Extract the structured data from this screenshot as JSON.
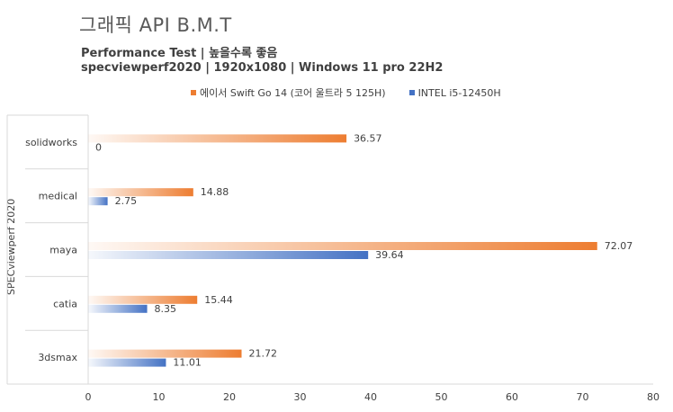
{
  "chart_data": {
    "type": "bar",
    "orientation": "horizontal",
    "title": "그래픽 API B.M.T",
    "subtitle_lines": [
      "Performance Test | 높을수록 좋음",
      "specviewperf2020 | 1920x1080 | Windows 11 pro 22H2"
    ],
    "ylabel": "SPECviewperf 2020",
    "xlabel": "",
    "categories": [
      "solidworks",
      "medical",
      "maya",
      "catia",
      "3dsmax"
    ],
    "series": [
      {
        "name": "에이서 Swift Go 14 (코어 울트라 5 125H)",
        "values": [
          36.57,
          14.88,
          72.07,
          15.44,
          21.72
        ],
        "labels": [
          "36.57",
          "14.88",
          "72.07",
          "15.44",
          "21.72"
        ],
        "color": "#ed7d31"
      },
      {
        "name": "INTEL i5-12450H",
        "values": [
          0,
          2.75,
          39.64,
          8.35,
          11.01
        ],
        "labels": [
          "0",
          "2.75",
          "39.64",
          "8.35",
          "11.01"
        ],
        "color": "#4472c4"
      }
    ],
    "xlim": [
      0,
      80
    ],
    "xticks": [
      0,
      10,
      20,
      30,
      40,
      50,
      60,
      70,
      80
    ],
    "grid": false,
    "legend_position": "top"
  }
}
